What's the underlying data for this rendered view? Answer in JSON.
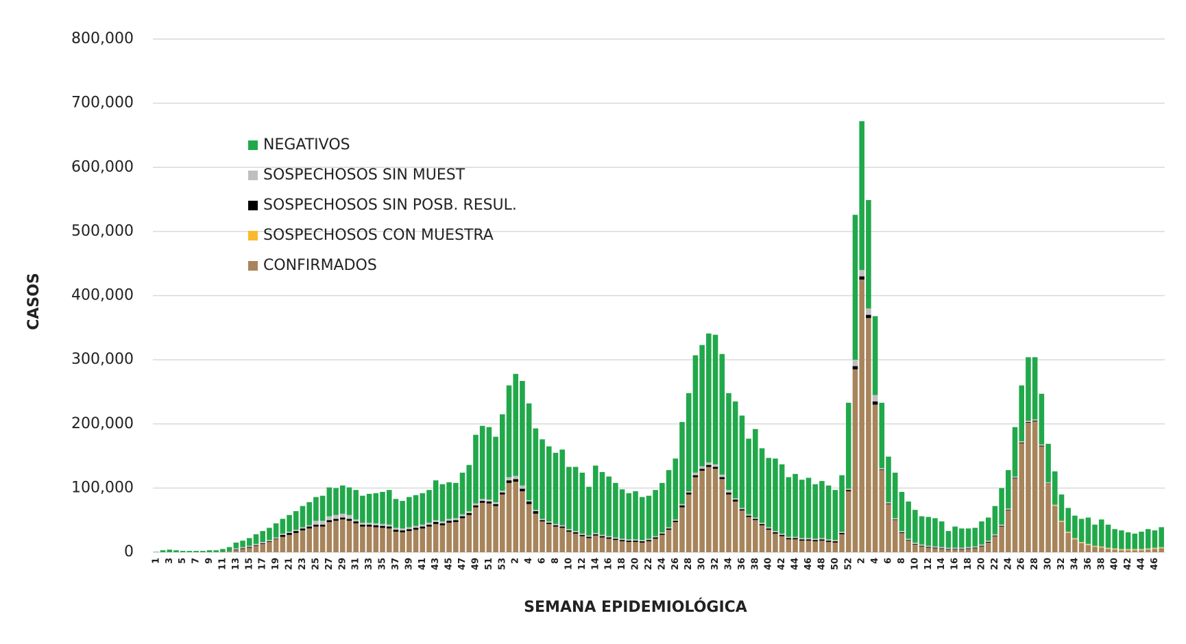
{
  "chart_data": {
    "type": "stacked_bar",
    "x_label": "SEMANA EPIDEMIOLÓGICA",
    "y_label": "CASOS",
    "ylim": [
      0,
      800000
    ],
    "yticks": [
      0,
      {
        "value": 100000,
        "label": "100,000"
      },
      {
        "value": 200000,
        "label": "200,000"
      },
      {
        "value": 300000,
        "label": "300,000"
      },
      {
        "value": 400000,
        "label": "400,000"
      },
      {
        "value": 500000,
        "label": "500,000"
      },
      {
        "value": 600000,
        "label": "600,000"
      },
      {
        "value": 700000,
        "label": "700,000"
      },
      {
        "value": 800000,
        "label": "800,000"
      }
    ],
    "grid": true,
    "categories": [
      "1",
      null,
      "3",
      null,
      "5",
      null,
      "7",
      null,
      "9",
      null,
      "11",
      null,
      "13",
      null,
      "15",
      null,
      "17",
      null,
      "19",
      null,
      "21",
      null,
      "23",
      null,
      "25",
      null,
      "27",
      null,
      "29",
      null,
      "31",
      null,
      "33",
      null,
      "35",
      null,
      "37",
      null,
      "39",
      null,
      "41",
      null,
      "43",
      null,
      "45",
      null,
      "47",
      null,
      "49",
      null,
      "51",
      null,
      "53",
      null,
      "2",
      null,
      "4",
      null,
      "6",
      null,
      "8",
      null,
      "10",
      null,
      "12",
      null,
      "14",
      null,
      "16",
      null,
      "18",
      null,
      "20",
      null,
      "22",
      null,
      "24",
      null,
      "26",
      null,
      "28",
      null,
      "30",
      null,
      "32",
      null,
      "34",
      null,
      "36",
      null,
      "38",
      null,
      "40",
      null,
      "42",
      null,
      "44",
      null,
      "46",
      null,
      "48",
      null,
      "50",
      null,
      "52",
      null,
      "2",
      null,
      "4",
      null,
      "6",
      null,
      "8",
      null,
      "10",
      null,
      "12",
      null,
      "14",
      null,
      "16",
      null,
      "18",
      null,
      "20",
      null,
      "22",
      null,
      "24",
      null,
      "26",
      null,
      "28",
      null,
      "30",
      null,
      "32",
      null,
      "34",
      null,
      "36",
      null,
      "38",
      null,
      "40",
      null,
      "42",
      null,
      "44",
      null,
      "46",
      null
    ],
    "series": [
      {
        "name": "CONFIRMADOS",
        "color": "#a7845b",
        "values": [
          0,
          0,
          0,
          0,
          0,
          0,
          0,
          0,
          0,
          100,
          500,
          1500,
          3000,
          5000,
          7000,
          10000,
          13000,
          16000,
          20000,
          24000,
          27000,
          30000,
          34000,
          37000,
          40000,
          40000,
          47000,
          49000,
          51000,
          49000,
          45000,
          40000,
          40000,
          39000,
          38000,
          37000,
          32000,
          31000,
          33000,
          35000,
          37000,
          40000,
          44000,
          42000,
          46000,
          47000,
          53000,
          58000,
          70000,
          77000,
          76000,
          72000,
          90000,
          108000,
          110000,
          95000,
          75000,
          60000,
          48000,
          44000,
          40000,
          38000,
          32000,
          29000,
          25000,
          22000,
          26000,
          23000,
          21000,
          19000,
          17000,
          16000,
          16000,
          15000,
          17000,
          21000,
          27000,
          35000,
          47000,
          70000,
          90000,
          117000,
          127000,
          133000,
          130000,
          114000,
          90000,
          79000,
          65000,
          55000,
          50000,
          42000,
          35000,
          29000,
          25000,
          20000,
          20000,
          18000,
          18000,
          17000,
          18000,
          16000,
          15000,
          28000,
          95000,
          285000,
          425000,
          365000,
          230000,
          128000,
          75000,
          50000,
          30000,
          18000,
          12000,
          9000,
          7000,
          6000,
          5000,
          4000,
          4000,
          4000,
          5000,
          6000,
          9000,
          15000,
          25000,
          40000,
          65000,
          115000,
          170000,
          202000,
          204000,
          165000,
          105000,
          72000,
          47000,
          30000,
          20000,
          14000,
          11000,
          8000,
          7000,
          5000,
          4000,
          3000,
          3000,
          3000,
          3000,
          4000,
          5000,
          6000
        ]
      },
      {
        "name": "SOSPECHOSOS CON MUESTRA",
        "color": "#fbb92d",
        "values": [
          0,
          0,
          0,
          0,
          0,
          0,
          0,
          0,
          0,
          0,
          0,
          0,
          0,
          0,
          0,
          0,
          0,
          0,
          0,
          0,
          0,
          0,
          0,
          0,
          0,
          0,
          0,
          0,
          0,
          0,
          0,
          0,
          0,
          0,
          0,
          0,
          0,
          0,
          0,
          0,
          0,
          0,
          0,
          0,
          0,
          0,
          0,
          0,
          0,
          0,
          0,
          0,
          0,
          0,
          0,
          0,
          0,
          0,
          0,
          0,
          0,
          0,
          0,
          0,
          0,
          0,
          0,
          0,
          0,
          0,
          0,
          0,
          0,
          0,
          0,
          0,
          0,
          0,
          0,
          0,
          0,
          0,
          0,
          0,
          0,
          0,
          0,
          0,
          0,
          0,
          0,
          0,
          0,
          0,
          0,
          0,
          0,
          0,
          0,
          0,
          0,
          0,
          0,
          0,
          0,
          0,
          0,
          0,
          0,
          0,
          0,
          0,
          0,
          0,
          0,
          0,
          0,
          0,
          0,
          0,
          0,
          0,
          0,
          0,
          0,
          0,
          0,
          0,
          0,
          0,
          0,
          0,
          0,
          0,
          1000,
          1000,
          1000,
          1000,
          1000,
          1000,
          1000,
          1000,
          1000,
          1000,
          1000,
          1000,
          1000,
          1000,
          1000,
          1000,
          1000,
          1000
        ]
      },
      {
        "name": "SOSPECHOSOS SIN POSB. RESUL.",
        "color": "#000000",
        "values": [
          0,
          0,
          0,
          0,
          0,
          0,
          0,
          0,
          0,
          0,
          0,
          0,
          1000,
          1000,
          1000,
          1000,
          1000,
          1000,
          1000,
          3000,
          3000,
          3000,
          3000,
          3000,
          3000,
          3000,
          3000,
          3000,
          3000,
          3000,
          3000,
          3000,
          3000,
          3000,
          3000,
          3000,
          3000,
          3000,
          3000,
          3000,
          3000,
          3000,
          3000,
          3000,
          3000,
          3000,
          3000,
          3000,
          3000,
          3000,
          3000,
          3000,
          3000,
          4000,
          4000,
          4000,
          4000,
          4000,
          2000,
          2000,
          2000,
          2000,
          2000,
          2000,
          2000,
          2000,
          2000,
          2000,
          2000,
          2000,
          2000,
          2000,
          2000,
          2000,
          2000,
          2000,
          2000,
          2000,
          2000,
          3000,
          3000,
          3000,
          3000,
          3000,
          3000,
          3000,
          3000,
          3000,
          2000,
          2000,
          2000,
          2000,
          2000,
          2000,
          2000,
          2000,
          2000,
          2000,
          2000,
          2000,
          2000,
          2000,
          2000,
          2000,
          2000,
          5000,
          5000,
          5000,
          5000,
          1000,
          1000,
          1000,
          1000,
          1000,
          1000,
          1000,
          1000,
          1000,
          1000,
          1000,
          1000,
          1000,
          1000,
          1000,
          1000,
          1000,
          1000,
          1000,
          1000,
          1000,
          1000,
          1000,
          1000,
          1000,
          1000,
          0,
          0,
          0,
          0,
          0,
          0,
          0,
          0,
          0,
          0,
          0,
          0,
          0,
          0,
          0,
          0,
          0
        ]
      },
      {
        "name": "SOSPECHOSOS SIN MUEST",
        "color": "#bfbfbf",
        "values": [
          0,
          0,
          0,
          0,
          0,
          0,
          0,
          0,
          0,
          0,
          0,
          0,
          2000,
          2000,
          2000,
          2000,
          2000,
          2000,
          2000,
          2000,
          2000,
          2000,
          2000,
          2000,
          6000,
          6000,
          6000,
          6000,
          6000,
          6000,
          3000,
          3000,
          3000,
          3000,
          3000,
          3000,
          3000,
          3000,
          3000,
          3000,
          3000,
          3000,
          3000,
          3000,
          3000,
          3000,
          3000,
          3000,
          3000,
          3000,
          3000,
          3000,
          3000,
          5000,
          5000,
          5000,
          2000,
          2000,
          2000,
          2000,
          2000,
          2000,
          2000,
          2000,
          2000,
          2000,
          2000,
          2000,
          2000,
          2000,
          2000,
          2000,
          2000,
          2000,
          2000,
          2000,
          2000,
          2000,
          2000,
          2000,
          2000,
          4000,
          4000,
          4000,
          4000,
          4000,
          4000,
          2000,
          2000,
          2000,
          2000,
          2000,
          2000,
          2000,
          2000,
          2000,
          2000,
          2000,
          2000,
          2000,
          2000,
          2000,
          2000,
          2000,
          2000,
          10000,
          10000,
          10000,
          10000,
          2000,
          2000,
          2000,
          2000,
          2000,
          2000,
          2000,
          2000,
          2000,
          2000,
          2000,
          2000,
          2000,
          2000,
          2000,
          2000,
          2000,
          2000,
          2000,
          2000,
          2000,
          2000,
          2000,
          2000,
          2000,
          2000,
          1000,
          1000,
          1000,
          1000,
          1000,
          1000,
          1000,
          1000,
          1000,
          1000,
          1000,
          1000,
          1000,
          1000,
          1000,
          1000,
          1000
        ]
      },
      {
        "name": "NEGATIVOS",
        "color": "#21a84a",
        "values": [
          500,
          3000,
          4000,
          3000,
          2000,
          2000,
          2000,
          2000,
          3000,
          2900,
          4500,
          6500,
          9000,
          10000,
          12000,
          15000,
          17000,
          19000,
          22000,
          23000,
          26000,
          29000,
          33000,
          36000,
          37000,
          39000,
          45000,
          42000,
          44000,
          43000,
          46000,
          42000,
          45000,
          47000,
          50000,
          54000,
          45000,
          43000,
          47000,
          48000,
          49000,
          51000,
          62000,
          58000,
          57000,
          55000,
          65000,
          72000,
          107000,
          114000,
          113000,
          102000,
          119000,
          143000,
          159000,
          163000,
          151000,
          127000,
          124000,
          117000,
          111000,
          118000,
          97000,
          100000,
          95000,
          76000,
          105000,
          98000,
          93000,
          85000,
          77000,
          72000,
          75000,
          67000,
          67000,
          72000,
          77000,
          89000,
          95000,
          128000,
          153000,
          183000,
          189000,
          201000,
          202000,
          188000,
          151000,
          151000,
          144000,
          118000,
          138000,
          116000,
          108000,
          113000,
          108000,
          93000,
          98000,
          91000,
          94000,
          85000,
          89000,
          84000,
          78000,
          88000,
          134000,
          226000,
          232000,
          169000,
          123000,
          102000,
          71000,
          71000,
          61000,
          58000,
          51000,
          44000,
          45000,
          44000,
          40000,
          26000,
          33000,
          30000,
          29000,
          29000,
          36000,
          36000,
          44000,
          57000,
          60000,
          77000,
          87000,
          99000,
          97000,
          79000,
          60000,
          52000,
          41000,
          37000,
          35000,
          36000,
          41000,
          33000,
          42000,
          36000,
          30000,
          29000,
          26000,
          24000,
          27000,
          30000,
          27000,
          31000
        ]
      }
    ]
  }
}
